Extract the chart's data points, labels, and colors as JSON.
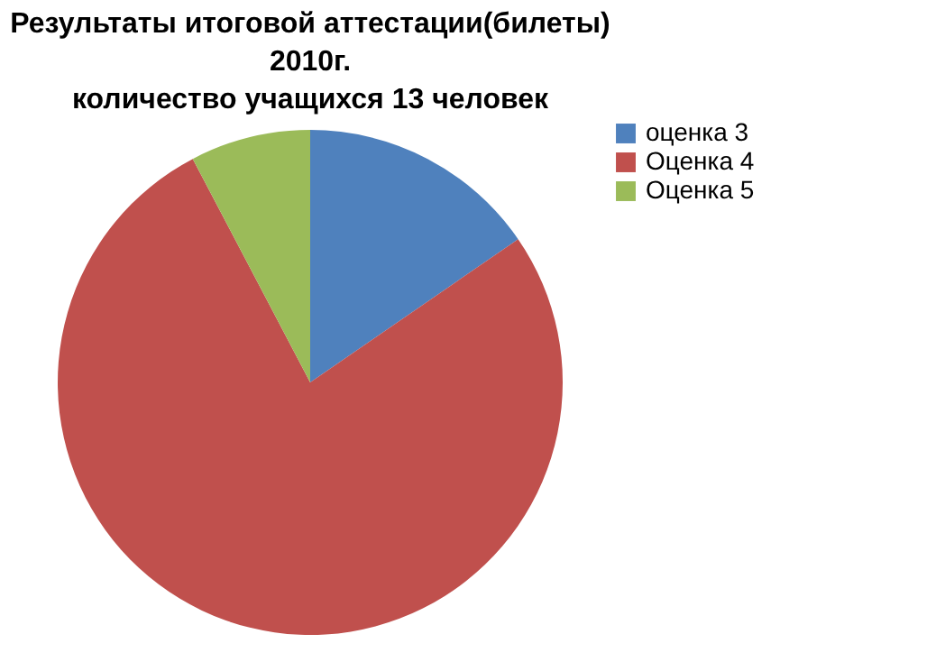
{
  "chart_data": {
    "type": "pie",
    "title": "Результаты итоговой аттестации(билеты) 2010г. количество учащихся 13 человек",
    "categories": [
      "оценка 3",
      "Оценка 4",
      "Оценка 5"
    ],
    "values": [
      15.4,
      76.9,
      7.7
    ],
    "colors": [
      "#4f81bd",
      "#c0504d",
      "#9bbb59"
    ],
    "legend": "right"
  }
}
